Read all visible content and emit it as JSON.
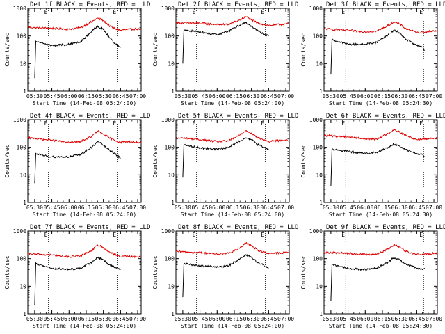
{
  "figure": {
    "background": "#ffffff",
    "event_color": "#000000",
    "lld_color": "#dd0000"
  },
  "chart_data": [
    {
      "type": "line",
      "detector": "1f",
      "title": "Det 1f BLACK = Events, RED = LLD",
      "xlabel": "Start Time (14-Feb-08 05:24:00)",
      "ylabel": "Counts/sec",
      "yscale": "log",
      "ylim": [
        1,
        1000
      ],
      "xlim": [
        "05:24",
        "07:03"
      ],
      "x_ticks": [
        "05:30",
        "05:45",
        "06:00",
        "06:15",
        "06:30",
        "06:45",
        "07:00"
      ],
      "y_ticks": [
        "1",
        "10",
        "100",
        "1000"
      ],
      "markers": [
        {
          "label": "E",
          "time": "05:42"
        },
        {
          "label": "E",
          "time": "06:42"
        }
      ],
      "series": [
        {
          "role": "lld",
          "x": [
            "05:24",
            "05:30",
            "05:45",
            "06:00",
            "06:10",
            "06:20",
            "06:25",
            "06:30",
            "06:35",
            "06:40",
            "06:45",
            "06:50",
            "07:00",
            "07:03"
          ],
          "y": [
            210,
            200,
            190,
            175,
            200,
            330,
            440,
            360,
            240,
            185,
            160,
            170,
            180,
            180
          ]
        },
        {
          "role": "events",
          "x": [
            "05:30",
            "05:31",
            "05:32",
            "05:45",
            "06:00",
            "06:10",
            "06:20",
            "06:25",
            "06:30",
            "06:35",
            "06:40",
            "06:45"
          ],
          "y": [
            3,
            65,
            60,
            45,
            50,
            60,
            150,
            230,
            170,
            90,
            55,
            38
          ]
        }
      ]
    },
    {
      "type": "line",
      "detector": "2f",
      "title": "Det 2f BLACK = Events, RED = LLD",
      "xlabel": "Start Time (14-Feb-08 05:24:00)",
      "ylabel": "Counts/sec",
      "yscale": "log",
      "ylim": [
        1,
        1000
      ],
      "xlim": [
        "05:24",
        "07:03"
      ],
      "x_ticks": [
        "05:30",
        "05:45",
        "06:00",
        "06:15",
        "06:30",
        "06:45",
        "07:00"
      ],
      "y_ticks": [
        "1",
        "10",
        "100",
        "1000"
      ],
      "markers": [
        {
          "label": "E",
          "time": "05:42"
        },
        {
          "label": "E",
          "time": "06:42"
        }
      ],
      "series": [
        {
          "role": "lld",
          "x": [
            "05:24",
            "05:30",
            "05:45",
            "06:00",
            "06:10",
            "06:20",
            "06:25",
            "06:30",
            "06:35",
            "06:40",
            "06:45",
            "06:50",
            "07:00",
            "07:03"
          ],
          "y": [
            300,
            295,
            290,
            260,
            265,
            380,
            500,
            380,
            300,
            265,
            240,
            250,
            275,
            275
          ]
        },
        {
          "role": "events",
          "x": [
            "05:30",
            "05:31",
            "05:32",
            "05:45",
            "06:00",
            "06:10",
            "06:20",
            "06:25",
            "06:30",
            "06:35",
            "06:40",
            "06:45"
          ],
          "y": [
            10,
            170,
            160,
            140,
            110,
            150,
            250,
            300,
            230,
            160,
            120,
            100
          ]
        }
      ]
    },
    {
      "type": "line",
      "detector": "3f",
      "title": "Det 3f BLACK = Events, RED = LLD",
      "xlabel": "Start Time (14-Feb-08 05:24:30)",
      "ylabel": "Counts/sec",
      "yscale": "log",
      "ylim": [
        1,
        1000
      ],
      "xlim": [
        "05:24",
        "07:03"
      ],
      "x_ticks": [
        "05:30",
        "05:45",
        "06:00",
        "06:15",
        "06:30",
        "06:45",
        "07:00"
      ],
      "y_ticks": [
        "1",
        "10",
        "100",
        "1000"
      ],
      "markers": [
        {
          "label": "E",
          "time": "05:43"
        },
        {
          "label": "E",
          "time": "06:51"
        }
      ],
      "series": [
        {
          "role": "lld",
          "x": [
            "05:24",
            "05:30",
            "05:45",
            "06:00",
            "06:10",
            "06:20",
            "06:25",
            "06:30",
            "06:35",
            "06:40",
            "06:45",
            "06:50",
            "07:00",
            "07:03"
          ],
          "y": [
            180,
            175,
            160,
            140,
            150,
            240,
            330,
            270,
            190,
            160,
            130,
            140,
            150,
            150
          ]
        },
        {
          "role": "events",
          "x": [
            "05:30",
            "05:31",
            "05:32",
            "05:45",
            "06:00",
            "06:10",
            "06:20",
            "06:25",
            "06:30",
            "06:35",
            "06:40",
            "06:45",
            "06:50",
            "06:52"
          ],
          "y": [
            4,
            80,
            70,
            50,
            50,
            60,
            110,
            160,
            130,
            80,
            60,
            45,
            40,
            30
          ]
        }
      ]
    },
    {
      "type": "line",
      "detector": "4f",
      "title": "Det 4f BLACK = Events, RED = LLD",
      "xlabel": "Start Time (14-Feb-08 05:24:00)",
      "ylabel": "Counts/sec",
      "yscale": "log",
      "ylim": [
        1,
        1000
      ],
      "xlim": [
        "05:24",
        "07:03"
      ],
      "x_ticks": [
        "05:30",
        "05:45",
        "06:00",
        "06:15",
        "06:30",
        "06:45",
        "07:00"
      ],
      "y_ticks": [
        "1",
        "10",
        "100",
        "1000"
      ],
      "markers": [
        {
          "label": "E",
          "time": "05:42"
        },
        {
          "label": "E",
          "time": "06:42"
        }
      ],
      "series": [
        {
          "role": "lld",
          "x": [
            "05:24",
            "05:30",
            "05:45",
            "06:00",
            "06:10",
            "06:20",
            "06:25",
            "06:30",
            "06:35",
            "06:40",
            "06:45",
            "06:50",
            "07:00",
            "07:03"
          ],
          "y": [
            220,
            210,
            180,
            150,
            160,
            250,
            380,
            300,
            220,
            180,
            150,
            160,
            150,
            150
          ]
        },
        {
          "role": "events",
          "x": [
            "05:30",
            "05:31",
            "05:32",
            "05:45",
            "06:00",
            "06:10",
            "06:20",
            "06:25",
            "06:30",
            "06:35",
            "06:40",
            "06:45"
          ],
          "y": [
            5,
            60,
            55,
            45,
            45,
            55,
            100,
            160,
            120,
            80,
            60,
            40
          ]
        }
      ]
    },
    {
      "type": "line",
      "detector": "5f",
      "title": "Det 5f BLACK = Events, RED = LLD",
      "xlabel": "Start Time (14-Feb-08 05:24:00)",
      "ylabel": "Counts/sec",
      "yscale": "log",
      "ylim": [
        1,
        1000
      ],
      "xlim": [
        "05:24",
        "07:03"
      ],
      "x_ticks": [
        "05:30",
        "05:45",
        "06:00",
        "06:15",
        "06:30",
        "06:45",
        "07:00"
      ],
      "y_ticks": [
        "1",
        "10",
        "100",
        "1000"
      ],
      "markers": [
        {
          "label": "E",
          "time": "05:42"
        },
        {
          "label": "E",
          "time": "06:42"
        }
      ],
      "series": [
        {
          "role": "lld",
          "x": [
            "05:24",
            "05:30",
            "05:45",
            "06:00",
            "06:10",
            "06:20",
            "06:25",
            "06:30",
            "06:35",
            "06:40",
            "06:45",
            "06:50",
            "07:00",
            "07:03"
          ],
          "y": [
            210,
            215,
            190,
            160,
            170,
            280,
            400,
            330,
            230,
            190,
            160,
            170,
            180,
            180
          ]
        },
        {
          "role": "events",
          "x": [
            "05:30",
            "05:31",
            "05:32",
            "05:45",
            "06:00",
            "06:10",
            "06:20",
            "06:25",
            "06:30",
            "06:35",
            "06:40",
            "06:45"
          ],
          "y": [
            8,
            130,
            120,
            95,
            85,
            100,
            170,
            220,
            190,
            130,
            100,
            85
          ]
        }
      ]
    },
    {
      "type": "line",
      "detector": "6f",
      "title": "Det 6f BLACK = Events, RED = LLD",
      "xlabel": "Start Time (14-Feb-08 05:24:30)",
      "ylabel": "Counts/sec",
      "yscale": "log",
      "ylim": [
        1,
        1000
      ],
      "xlim": [
        "05:24",
        "07:03"
      ],
      "x_ticks": [
        "05:30",
        "05:45",
        "06:00",
        "06:15",
        "06:30",
        "06:45",
        "07:00"
      ],
      "y_ticks": [
        "1",
        "10",
        "100",
        "1000"
      ],
      "markers": [
        {
          "label": "E",
          "time": "05:43"
        },
        {
          "label": "E",
          "time": "06:51"
        }
      ],
      "series": [
        {
          "role": "lld",
          "x": [
            "05:24",
            "05:30",
            "05:45",
            "06:00",
            "06:10",
            "06:20",
            "06:25",
            "06:30",
            "06:35",
            "06:40",
            "06:45",
            "06:50",
            "07:00",
            "07:03"
          ],
          "y": [
            260,
            260,
            240,
            200,
            200,
            310,
            440,
            360,
            270,
            230,
            190,
            200,
            215,
            215
          ]
        },
        {
          "role": "events",
          "x": [
            "05:30",
            "05:31",
            "05:32",
            "05:45",
            "06:00",
            "06:10",
            "06:20",
            "06:25",
            "06:30",
            "06:35",
            "06:40",
            "06:45",
            "06:50",
            "06:52"
          ],
          "y": [
            4,
            90,
            85,
            70,
            60,
            65,
            100,
            130,
            110,
            85,
            70,
            60,
            55,
            45
          ]
        }
      ]
    },
    {
      "type": "line",
      "detector": "7f",
      "title": "Det 7f BLACK = Events, RED = LLD",
      "xlabel": "Start Time (14-Feb-08 05:24:00)",
      "ylabel": "Counts/sec",
      "yscale": "log",
      "ylim": [
        1,
        1000
      ],
      "xlim": [
        "05:24",
        "07:03"
      ],
      "x_ticks": [
        "05:30",
        "05:45",
        "06:00",
        "06:15",
        "06:30",
        "06:45",
        "07:00"
      ],
      "y_ticks": [
        "1",
        "10",
        "100",
        "1000"
      ],
      "markers": [
        {
          "label": "E",
          "time": "05:42"
        },
        {
          "label": "E",
          "time": "06:42"
        }
      ],
      "series": [
        {
          "role": "lld",
          "x": [
            "05:24",
            "05:30",
            "05:45",
            "06:00",
            "06:10",
            "06:20",
            "06:25",
            "06:30",
            "06:35",
            "06:40",
            "06:45",
            "06:50",
            "07:00",
            "07:03"
          ],
          "y": [
            150,
            145,
            135,
            115,
            125,
            200,
            310,
            250,
            175,
            140,
            115,
            120,
            115,
            115
          ]
        },
        {
          "role": "events",
          "x": [
            "05:30",
            "05:31",
            "05:32",
            "05:45",
            "06:00",
            "06:10",
            "06:20",
            "06:25",
            "06:30",
            "06:35",
            "06:40",
            "06:45"
          ],
          "y": [
            2,
            70,
            65,
            45,
            40,
            45,
            75,
            110,
            90,
            60,
            50,
            40
          ]
        }
      ]
    },
    {
      "type": "line",
      "detector": "8f",
      "title": "Det 8f BLACK = Events, RED = LLD",
      "xlabel": "Start Time (14-Feb-08 05:24:00)",
      "ylabel": "Counts/sec",
      "yscale": "log",
      "ylim": [
        1,
        1000
      ],
      "xlim": [
        "05:24",
        "07:03"
      ],
      "x_ticks": [
        "05:30",
        "05:45",
        "06:00",
        "06:15",
        "06:30",
        "06:45",
        "07:00"
      ],
      "y_ticks": [
        "1",
        "10",
        "100",
        "1000"
      ],
      "markers": [
        {
          "label": "E",
          "time": "05:42"
        },
        {
          "label": "E",
          "time": "06:42"
        }
      ],
      "series": [
        {
          "role": "lld",
          "x": [
            "05:24",
            "05:30",
            "05:45",
            "06:00",
            "06:10",
            "06:20",
            "06:25",
            "06:30",
            "06:35",
            "06:40",
            "06:45",
            "06:50",
            "07:00",
            "07:03"
          ],
          "y": [
            180,
            175,
            165,
            145,
            155,
            240,
            360,
            300,
            210,
            175,
            150,
            155,
            165,
            165
          ]
        },
        {
          "role": "events",
          "x": [
            "05:30",
            "05:31",
            "05:32",
            "05:45",
            "06:00",
            "06:10",
            "06:20",
            "06:25",
            "06:30",
            "06:35",
            "06:40",
            "06:45"
          ],
          "y": [
            4,
            70,
            65,
            55,
            50,
            55,
            100,
            140,
            110,
            75,
            60,
            45
          ]
        }
      ]
    },
    {
      "type": "line",
      "detector": "9f",
      "title": "Det 9f BLACK = Events, RED = LLD",
      "xlabel": "Start Time (14-Feb-08 05:24:30)",
      "ylabel": "Counts/sec",
      "yscale": "log",
      "ylim": [
        1,
        1000
      ],
      "xlim": [
        "05:24",
        "07:03"
      ],
      "x_ticks": [
        "05:30",
        "05:45",
        "06:00",
        "06:15",
        "06:30",
        "06:45",
        "07:00"
      ],
      "y_ticks": [
        "1",
        "10",
        "100",
        "1000"
      ],
      "markers": [
        {
          "label": "E",
          "time": "05:43"
        },
        {
          "label": "E",
          "time": "06:51"
        }
      ],
      "series": [
        {
          "role": "lld",
          "x": [
            "05:24",
            "05:30",
            "05:45",
            "06:00",
            "06:10",
            "06:20",
            "06:25",
            "06:30",
            "06:35",
            "06:40",
            "06:45",
            "06:50",
            "07:00",
            "07:03"
          ],
          "y": [
            170,
            165,
            155,
            140,
            145,
            220,
            320,
            270,
            190,
            160,
            140,
            145,
            155,
            155
          ]
        },
        {
          "role": "events",
          "x": [
            "05:30",
            "05:31",
            "05:32",
            "05:45",
            "06:00",
            "06:10",
            "06:20",
            "06:25",
            "06:30",
            "06:35",
            "06:40",
            "06:45",
            "06:50",
            "06:52"
          ],
          "y": [
            3,
            65,
            60,
            45,
            40,
            45,
            75,
            110,
            90,
            65,
            55,
            45,
            40,
            45
          ]
        }
      ]
    }
  ]
}
